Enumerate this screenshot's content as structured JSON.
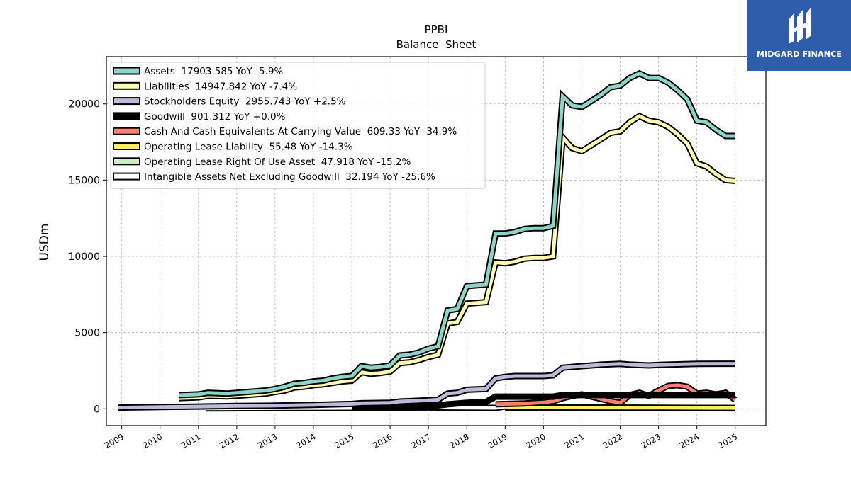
{
  "brand": {
    "name": "MIDGARD FINANCE",
    "bg_color": "#2f5dab"
  },
  "chart_data": {
    "type": "line",
    "title": "PPBI",
    "subtitle": "Balance  Sheet",
    "ylabel": "USDm",
    "xlabel": "",
    "xlim": [
      2008.6,
      2025.8
    ],
    "ylim": [
      -1100,
      23100
    ],
    "x_ticks": [
      "2009",
      "2010",
      "2011",
      "2012",
      "2013",
      "2014",
      "2015",
      "2016",
      "2017",
      "2018",
      "2019",
      "2020",
      "2021",
      "2022",
      "2023",
      "2024",
      "2025"
    ],
    "y_ticks": [
      0,
      5000,
      10000,
      15000,
      20000
    ],
    "y_tick_labels": [
      "0",
      "5000",
      "10000",
      "15000",
      "20000"
    ],
    "grid": true,
    "legend_position": "top-left",
    "series": [
      {
        "name": "Assets",
        "legend": "Assets  17903.585 YoY -5.9%",
        "color": "#8dd3c7",
        "points": [
          [
            2010.5,
            900
          ],
          [
            2011.0,
            950
          ],
          [
            2011.25,
            1050
          ],
          [
            2011.75,
            1000
          ],
          [
            2012.0,
            1050
          ],
          [
            2012.25,
            1100
          ],
          [
            2012.75,
            1200
          ],
          [
            2013.0,
            1300
          ],
          [
            2013.25,
            1450
          ],
          [
            2013.5,
            1650
          ],
          [
            2013.75,
            1700
          ],
          [
            2014.0,
            1800
          ],
          [
            2014.25,
            1850
          ],
          [
            2014.5,
            2000
          ],
          [
            2014.75,
            2100
          ],
          [
            2015.0,
            2150
          ],
          [
            2015.25,
            2800
          ],
          [
            2015.5,
            2700
          ],
          [
            2015.75,
            2750
          ],
          [
            2016.0,
            2850
          ],
          [
            2016.25,
            3500
          ],
          [
            2016.5,
            3550
          ],
          [
            2016.75,
            3700
          ],
          [
            2017.0,
            3950
          ],
          [
            2017.25,
            4100
          ],
          [
            2017.5,
            6450
          ],
          [
            2017.75,
            6550
          ],
          [
            2018.0,
            8050
          ],
          [
            2018.25,
            8100
          ],
          [
            2018.5,
            8150
          ],
          [
            2018.75,
            11500
          ],
          [
            2019.0,
            11500
          ],
          [
            2019.25,
            11600
          ],
          [
            2019.5,
            11800
          ],
          [
            2019.75,
            11850
          ],
          [
            2020.0,
            11850
          ],
          [
            2020.25,
            12000
          ],
          [
            2020.5,
            20500
          ],
          [
            2020.75,
            19900
          ],
          [
            2021.0,
            19800
          ],
          [
            2021.25,
            20200
          ],
          [
            2021.5,
            20600
          ],
          [
            2021.75,
            21100
          ],
          [
            2022.0,
            21200
          ],
          [
            2022.25,
            21700
          ],
          [
            2022.5,
            22000
          ],
          [
            2022.75,
            21700
          ],
          [
            2023.0,
            21700
          ],
          [
            2023.25,
            21400
          ],
          [
            2023.5,
            20900
          ],
          [
            2023.75,
            20300
          ],
          [
            2024.0,
            18900
          ],
          [
            2024.25,
            18800
          ],
          [
            2024.5,
            18300
          ],
          [
            2024.75,
            17900
          ],
          [
            2025.0,
            17900
          ]
        ]
      },
      {
        "name": "Liabilities",
        "legend": "Liabilities  14947.842 YoY -7.4%",
        "color": "#ffffb3",
        "points": [
          [
            2010.5,
            700
          ],
          [
            2011.0,
            750
          ],
          [
            2011.25,
            850
          ],
          [
            2011.75,
            820
          ],
          [
            2012.0,
            860
          ],
          [
            2012.25,
            900
          ],
          [
            2012.75,
            1000
          ],
          [
            2013.0,
            1100
          ],
          [
            2013.25,
            1200
          ],
          [
            2013.5,
            1400
          ],
          [
            2013.75,
            1450
          ],
          [
            2014.0,
            1550
          ],
          [
            2014.25,
            1600
          ],
          [
            2014.5,
            1700
          ],
          [
            2014.75,
            1800
          ],
          [
            2015.0,
            1850
          ],
          [
            2015.25,
            2400
          ],
          [
            2015.5,
            2300
          ],
          [
            2015.75,
            2350
          ],
          [
            2016.0,
            2450
          ],
          [
            2016.25,
            3000
          ],
          [
            2016.5,
            3050
          ],
          [
            2016.75,
            3200
          ],
          [
            2017.0,
            3400
          ],
          [
            2017.25,
            3550
          ],
          [
            2017.5,
            5600
          ],
          [
            2017.75,
            5700
          ],
          [
            2018.0,
            6900
          ],
          [
            2018.25,
            6950
          ],
          [
            2018.5,
            7000
          ],
          [
            2018.75,
            9600
          ],
          [
            2019.0,
            9550
          ],
          [
            2019.25,
            9650
          ],
          [
            2019.5,
            9850
          ],
          [
            2019.75,
            9900
          ],
          [
            2020.0,
            9900
          ],
          [
            2020.25,
            10000
          ],
          [
            2020.5,
            17800
          ],
          [
            2020.75,
            17100
          ],
          [
            2021.0,
            16900
          ],
          [
            2021.25,
            17300
          ],
          [
            2021.5,
            17700
          ],
          [
            2021.75,
            18100
          ],
          [
            2022.0,
            18200
          ],
          [
            2022.25,
            18800
          ],
          [
            2022.5,
            19200
          ],
          [
            2022.75,
            18900
          ],
          [
            2023.0,
            18800
          ],
          [
            2023.25,
            18500
          ],
          [
            2023.5,
            18000
          ],
          [
            2023.75,
            17400
          ],
          [
            2024.0,
            16100
          ],
          [
            2024.25,
            15900
          ],
          [
            2024.5,
            15400
          ],
          [
            2024.75,
            15000
          ],
          [
            2025.0,
            14950
          ]
        ]
      },
      {
        "name": "Stockholders Equity",
        "legend": "Stockholders Equity  2955.743 YoY +2.5%",
        "color": "#bebada",
        "points": [
          [
            2008.9,
            80
          ],
          [
            2011.0,
            150
          ],
          [
            2012.0,
            190
          ],
          [
            2013.0,
            210
          ],
          [
            2014.0,
            260
          ],
          [
            2015.0,
            320
          ],
          [
            2015.25,
            370
          ],
          [
            2016.0,
            400
          ],
          [
            2016.25,
            480
          ],
          [
            2017.0,
            560
          ],
          [
            2017.25,
            600
          ],
          [
            2017.5,
            1000
          ],
          [
            2017.75,
            1050
          ],
          [
            2018.0,
            1250
          ],
          [
            2018.5,
            1300
          ],
          [
            2018.75,
            2000
          ],
          [
            2019.0,
            2100
          ],
          [
            2019.25,
            2150
          ],
          [
            2019.75,
            2150
          ],
          [
            2020.0,
            2150
          ],
          [
            2020.25,
            2200
          ],
          [
            2020.5,
            2700
          ],
          [
            2021.0,
            2800
          ],
          [
            2021.25,
            2850
          ],
          [
            2021.5,
            2900
          ],
          [
            2022.0,
            2950
          ],
          [
            2022.25,
            2900
          ],
          [
            2022.75,
            2850
          ],
          [
            2023.0,
            2880
          ],
          [
            2023.5,
            2920
          ],
          [
            2024.0,
            2950
          ],
          [
            2025.0,
            2960
          ]
        ]
      },
      {
        "name": "Goodwill",
        "legend": "Goodwill  901.312 YoY +0.0%",
        "color": "#000000",
        "points": [
          [
            2015.0,
            60
          ],
          [
            2016.0,
            100
          ],
          [
            2017.0,
            150
          ],
          [
            2017.5,
            300
          ],
          [
            2018.0,
            400
          ],
          [
            2018.5,
            450
          ],
          [
            2018.75,
            800
          ],
          [
            2019.5,
            800
          ],
          [
            2020.25,
            800
          ],
          [
            2020.5,
            900
          ],
          [
            2021.0,
            900
          ],
          [
            2025.0,
            900
          ]
        ]
      },
      {
        "name": "Cash And Cash Equivalents At Carrying Value",
        "legend": "Cash And Cash Equivalents At Carrying Value  609.33 YoY -34.9%",
        "color": "#fb8072",
        "points": [
          [
            2018.75,
            300
          ],
          [
            2019.5,
            350
          ],
          [
            2020.0,
            420
          ],
          [
            2020.25,
            500
          ],
          [
            2020.5,
            700
          ],
          [
            2020.75,
            850
          ],
          [
            2021.0,
            950
          ],
          [
            2021.25,
            800
          ],
          [
            2021.5,
            650
          ],
          [
            2021.75,
            500
          ],
          [
            2022.0,
            400
          ],
          [
            2022.25,
            900
          ],
          [
            2022.5,
            1050
          ],
          [
            2022.75,
            850
          ],
          [
            2023.0,
            1200
          ],
          [
            2023.25,
            1500
          ],
          [
            2023.5,
            1550
          ],
          [
            2023.75,
            1450
          ],
          [
            2024.0,
            1000
          ],
          [
            2024.25,
            1050
          ],
          [
            2024.5,
            950
          ],
          [
            2024.75,
            1050
          ],
          [
            2025.0,
            600
          ]
        ]
      },
      {
        "name": "Operating Lease Liability",
        "legend": "Operating Lease Liability  55.48 YoY -14.3%",
        "color": "#ffed6f",
        "points": [
          [
            2019.0,
            90
          ],
          [
            2020.0,
            85
          ],
          [
            2021.0,
            80
          ],
          [
            2022.0,
            75
          ],
          [
            2023.0,
            70
          ],
          [
            2024.0,
            62
          ],
          [
            2025.0,
            55
          ]
        ]
      },
      {
        "name": "Operating Lease Right Of Use Asset",
        "legend": "Operating Lease Right Of Use Asset  47.918 YoY -15.2%",
        "color": "#ccebc5",
        "points": [
          [
            2019.0,
            80
          ],
          [
            2020.0,
            75
          ],
          [
            2021.0,
            70
          ],
          [
            2022.0,
            65
          ],
          [
            2023.0,
            60
          ],
          [
            2024.0,
            55
          ],
          [
            2025.0,
            48
          ]
        ]
      },
      {
        "name": "Intangible Assets Net Excluding Goodwill",
        "legend": "Intangible Assets Net Excluding Goodwill  32.194 YoY -25.6%",
        "color": "#ffffff",
        "points": [
          [
            2011.2,
            30
          ],
          [
            2015.0,
            60
          ],
          [
            2017.0,
            90
          ],
          [
            2018.75,
            60
          ],
          [
            2019.0,
            150
          ],
          [
            2020.0,
            120
          ],
          [
            2021.0,
            100
          ],
          [
            2022.0,
            80
          ],
          [
            2023.0,
            60
          ],
          [
            2024.0,
            45
          ],
          [
            2025.0,
            32
          ]
        ]
      }
    ]
  }
}
